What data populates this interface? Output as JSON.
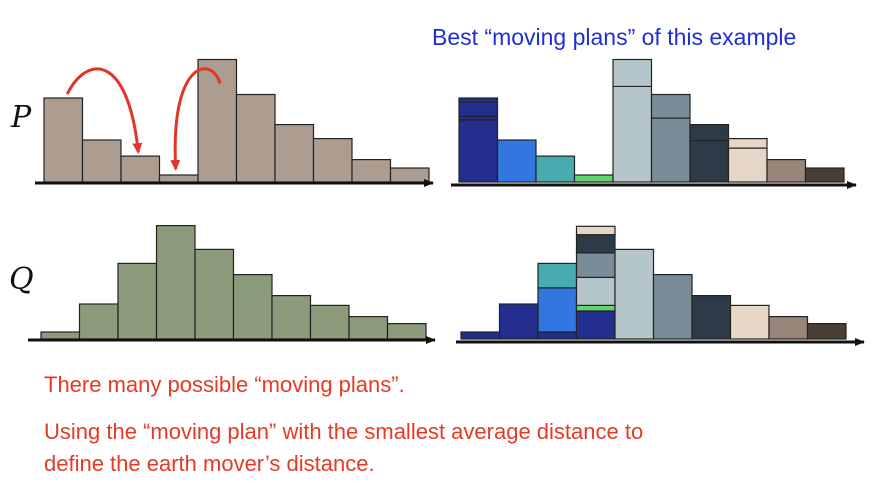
{
  "title": "Best “moving plans” of this example",
  "labels": {
    "p": "P",
    "q": "Q"
  },
  "captions": [
    "There many possible “moving plans”.",
    "Using the “moving plan” with the smallest average distance to",
    "define the earth mover’s distance."
  ],
  "colors": {
    "p_fill": "#ad9d91",
    "q_fill": "#8c9b7b",
    "arrow": "#e0362a",
    "axis": "#111111",
    "title": "#1f2fd6",
    "caption": "#e63a26",
    "plan": [
      "#232e8e",
      "#3277e0",
      "#47acb0",
      "#64d46e",
      "#b5c6cb",
      "#7a8c97",
      "#2d3a48",
      "#e6d6c8",
      "#978679",
      "#4a3f35"
    ]
  },
  "histograms": {
    "p": [
      12,
      6,
      3.7,
      1,
      17.5,
      12.5,
      8.2,
      6.2,
      3.2,
      2
    ],
    "q": [
      1,
      5,
      10.8,
      16.2,
      12.8,
      9.2,
      6.2,
      4.8,
      3.2,
      2.2
    ]
  },
  "moves": [
    {
      "from_bin": 1,
      "to_bin": 3
    },
    {
      "from_bin": 5,
      "to_bin": 4
    }
  ]
}
